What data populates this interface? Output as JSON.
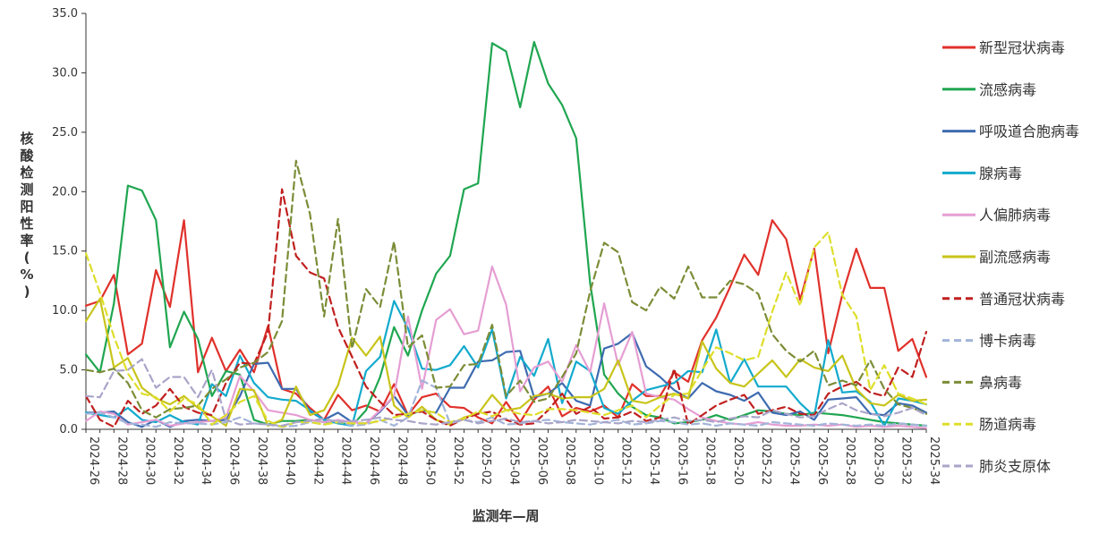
{
  "chart_data": {
    "type": "line",
    "xlabel": "监测年—周",
    "ylabel": "核酸检测阳性率(%)",
    "ylim": [
      0,
      35
    ],
    "yticks": [
      "0.0",
      "5.0",
      "10.0",
      "15.0",
      "20.0",
      "25.0",
      "30.0",
      "35.0"
    ],
    "grid": false,
    "legend_position": "right",
    "categories": [
      "2024-26",
      "2024-27",
      "2024-28",
      "2024-29",
      "2024-30",
      "2024-31",
      "2024-32",
      "2024-33",
      "2024-34",
      "2024-35",
      "2024-36",
      "2024-37",
      "2024-38",
      "2024-39",
      "2024-40",
      "2024-41",
      "2024-42",
      "2024-43",
      "2024-44",
      "2024-45",
      "2024-46",
      "2024-47",
      "2024-48",
      "2024-49",
      "2024-50",
      "2024-51",
      "2024-52",
      "2025-01",
      "2025-02",
      "2025-03",
      "2025-04",
      "2025-05",
      "2025-06",
      "2025-07",
      "2025-08",
      "2025-09",
      "2025-10",
      "2025-11",
      "2025-12",
      "2025-13",
      "2025-14",
      "2025-15",
      "2025-16",
      "2025-17",
      "2025-18",
      "2025-19",
      "2025-20",
      "2025-21",
      "2025-22",
      "2025-23",
      "2025-24",
      "2025-25",
      "2025-26",
      "2025-27",
      "2025-28",
      "2025-29",
      "2025-30",
      "2025-31",
      "2025-32",
      "2025-33",
      "2025-34"
    ],
    "tick_labels": [
      "2024-26",
      "2024-28",
      "2024-30",
      "2024-32",
      "2024-34",
      "2024-36",
      "2024-38",
      "2024-40",
      "2024-42",
      "2024-44",
      "2024-46",
      "2024-48",
      "2024-50",
      "2024-52",
      "2025-02",
      "2025-04",
      "2025-06",
      "2025-08",
      "2025-10",
      "2025-12",
      "2025-14",
      "2025-16",
      "2025-18",
      "2025-20",
      "2025-22",
      "2025-24",
      "2025-26",
      "2025-28",
      "2025-30",
      "2025-32",
      "2025-34"
    ],
    "series": [
      {
        "name": "新型冠状病毒",
        "color": "#e0312b",
        "dash": false,
        "values": [
          10.4,
          10.8,
          13.0,
          6.3,
          7.2,
          13.4,
          10.3,
          17.6,
          4.8,
          7.7,
          4.9,
          6.7,
          4.8,
          8.7,
          3.4,
          3.0,
          1.8,
          0.8,
          2.9,
          1.6,
          2.0,
          1.5,
          3.8,
          1.2,
          2.7,
          3.0,
          1.9,
          1.8,
          1.0,
          0.5,
          2.3,
          0.6,
          2.5,
          3.6,
          1.1,
          1.8,
          1.5,
          2.0,
          1.0,
          3.8,
          2.8,
          2.8,
          4.8,
          4.0,
          7.5,
          9.4,
          12.0,
          14.7,
          13.0,
          17.6,
          16.0,
          10.9,
          15.2,
          6.4,
          11.3,
          15.2,
          11.9,
          11.9,
          6.6,
          7.6,
          4.4
        ]
      },
      {
        "name": "流感病毒",
        "color": "#1fa650",
        "dash": false,
        "values": [
          6.3,
          4.8,
          10.6,
          20.5,
          20.1,
          17.6,
          6.9,
          9.9,
          7.6,
          2.8,
          4.9,
          4.6,
          0.8,
          0.4,
          0.7,
          0.7,
          0.8,
          0.6,
          0.6,
          0.3,
          1.6,
          4.4,
          8.6,
          6.2,
          10.0,
          13.1,
          14.6,
          20.2,
          20.7,
          32.5,
          31.8,
          27.1,
          32.6,
          29.1,
          27.3,
          24.5,
          12.3,
          4.6,
          3.0,
          1.9,
          1.2,
          1.0,
          0.5,
          0.6,
          0.8,
          1.2,
          0.8,
          1.2,
          1.6,
          1.5,
          1.3,
          1.2,
          1.4,
          1.3,
          1.2,
          1.0,
          0.8,
          0.6,
          0.5,
          0.4,
          0.3
        ]
      },
      {
        "name": "呼吸道合胞病毒",
        "color": "#3e6bb0",
        "dash": false,
        "values": [
          1.4,
          1.4,
          1.5,
          0.6,
          0.2,
          0.8,
          0.2,
          0.7,
          0.8,
          0.7,
          0.8,
          2.8,
          5.5,
          5.6,
          3.4,
          3.4,
          1.5,
          0.8,
          1.4,
          0.6,
          0.5,
          1.5,
          2.8,
          1.2,
          1.6,
          1.4,
          3.5,
          3.5,
          5.7,
          5.8,
          6.5,
          6.6,
          2.7,
          3.0,
          3.9,
          2.4,
          2.0,
          6.8,
          7.2,
          8.1,
          5.3,
          4.4,
          3.3,
          2.6,
          3.9,
          3.2,
          2.9,
          2.4,
          3.1,
          1.4,
          1.2,
          1.5,
          0.8,
          2.5,
          2.6,
          2.7,
          1.3,
          1.2,
          2.2,
          2.0,
          1.4
        ]
      },
      {
        "name": "腺病毒",
        "color": "#13aacd",
        "dash": false,
        "values": [
          1.4,
          1.2,
          1.0,
          1.8,
          0.8,
          0.6,
          1.2,
          0.6,
          0.4,
          3.8,
          2.8,
          6.2,
          3.9,
          2.7,
          2.5,
          2.4,
          1.6,
          0.8,
          0.5,
          0.3,
          4.9,
          6.1,
          10.8,
          8.5,
          5.1,
          5.0,
          5.4,
          7.0,
          5.2,
          8.4,
          2.6,
          6.1,
          4.5,
          7.6,
          2.2,
          5.7,
          4.9,
          1.8,
          1.3,
          2.4,
          3.3,
          3.6,
          3.9,
          4.9,
          4.8,
          8.4,
          3.9,
          5.9,
          3.6,
          3.6,
          3.6,
          2.2,
          1.1,
          7.5,
          3.1,
          3.2,
          2.3,
          0.3,
          2.6,
          2.4,
          2.1
        ]
      },
      {
        "name": "人偏肺病毒",
        "color": "#e59ed3",
        "dash": false,
        "values": [
          0.7,
          1.5,
          1.3,
          0.4,
          0.6,
          0.8,
          0.3,
          0.5,
          0.6,
          0.7,
          1.0,
          4.5,
          3.2,
          1.6,
          1.4,
          1.2,
          0.8,
          0.6,
          0.8,
          0.6,
          0.5,
          1.6,
          2.8,
          9.5,
          3.4,
          9.2,
          10.1,
          8.0,
          8.3,
          13.7,
          10.5,
          3.2,
          5.2,
          5.7,
          4.0,
          7.1,
          4.8,
          10.6,
          5.4,
          8.2,
          3.0,
          2.7,
          2.5,
          1.7,
          1.0,
          0.7,
          0.5,
          0.4,
          0.6,
          0.4,
          0.3,
          0.3,
          0.4,
          0.3,
          0.4,
          0.2,
          0.3,
          0.2,
          0.3,
          0.2,
          0.1
        ]
      },
      {
        "name": "副流感病毒",
        "color": "#c8c41a",
        "dash": false,
        "values": [
          9.1,
          11.0,
          5.2,
          6.0,
          3.5,
          2.6,
          2.1,
          2.8,
          1.8,
          1.1,
          0.3,
          3.4,
          3.3,
          0.3,
          0.8,
          3.6,
          1.2,
          1.6,
          3.7,
          7.7,
          6.2,
          7.8,
          2.0,
          1.0,
          1.9,
          0.8,
          0.4,
          1.0,
          1.3,
          2.9,
          1.6,
          1.8,
          2.8,
          3.0,
          2.6,
          2.7,
          2.7,
          3.4,
          5.8,
          2.4,
          2.2,
          2.7,
          3.0,
          2.6,
          7.4,
          5.1,
          3.9,
          3.6,
          4.7,
          5.8,
          4.4,
          5.9,
          5.2,
          4.9,
          6.2,
          3.4,
          2.2,
          2.0,
          2.9,
          2.4,
          2.5
        ]
      },
      {
        "name": "普通冠状病毒",
        "color": "#c0201f",
        "dash": true,
        "values": [
          2.8,
          0.8,
          0.2,
          2.4,
          1.3,
          2.0,
          3.4,
          1.9,
          1.4,
          1.2,
          3.9,
          5.6,
          5.5,
          8.2,
          20.2,
          14.6,
          13.2,
          12.7,
          8.6,
          6.1,
          3.6,
          2.3,
          1.2,
          1.3,
          1.5,
          0.8,
          0.3,
          0.9,
          1.3,
          1.5,
          0.8,
          0.4,
          0.5,
          1.6,
          3.0,
          1.3,
          1.9,
          0.9,
          1.0,
          1.5,
          0.7,
          1.0,
          5.1,
          0.4,
          1.2,
          2.0,
          2.5,
          2.9,
          1.3,
          1.6,
          1.9,
          1.3,
          1.2,
          3.0,
          3.6,
          4.0,
          3.1,
          2.8,
          5.2,
          4.4,
          8.2
        ]
      },
      {
        "name": "博卡病毒",
        "color": "#a2b4d9",
        "dash": true,
        "values": [
          1.3,
          1.4,
          1.0,
          0.5,
          0.4,
          0.2,
          0.6,
          0.5,
          0.5,
          0.4,
          0.6,
          1.0,
          0.5,
          0.4,
          0.2,
          0.3,
          0.6,
          0.4,
          0.7,
          0.3,
          0.4,
          0.8,
          0.3,
          1.0,
          4.1,
          3.5,
          0.5,
          0.8,
          0.6,
          1.0,
          0.4,
          0.5,
          0.7,
          0.8,
          0.6,
          0.5,
          0.4,
          0.6,
          0.8,
          0.4,
          0.5,
          0.7,
          0.6,
          0.4,
          0.5,
          0.3,
          0.5,
          0.4,
          0.3,
          0.6,
          0.5,
          0.4,
          0.3,
          0.5,
          0.4,
          0.3,
          0.4,
          0.3,
          0.5,
          0.4,
          0.3
        ]
      },
      {
        "name": "鼻病毒",
        "color": "#7b8d37",
        "dash": true,
        "values": [
          5.0,
          4.8,
          5.1,
          3.9,
          1.6,
          1.0,
          1.7,
          1.8,
          2.0,
          3.4,
          4.2,
          5.2,
          5.6,
          6.5,
          9.1,
          22.6,
          18.1,
          9.5,
          17.7,
          6.8,
          11.8,
          10.3,
          15.8,
          6.9,
          7.9,
          3.5,
          3.6,
          5.4,
          5.5,
          8.8,
          2.8,
          4.1,
          2.3,
          2.6,
          4.4,
          6.4,
          11.6,
          15.7,
          14.9,
          10.7,
          10.0,
          12.0,
          11.0,
          13.7,
          11.1,
          11.1,
          12.5,
          12.2,
          11.4,
          8.0,
          6.6,
          5.7,
          6.6,
          3.7,
          4.1,
          3.7,
          5.8,
          3.4,
          2.1,
          1.8,
          1.3
        ]
      },
      {
        "name": "肠道病毒",
        "color": "#dede2b",
        "dash": true,
        "values": [
          14.8,
          11.5,
          7.8,
          4.7,
          3.0,
          2.7,
          1.5,
          2.6,
          2.1,
          0.4,
          1.2,
          2.3,
          2.8,
          0.7,
          0.2,
          0.6,
          0.6,
          0.4,
          0.6,
          0.5,
          0.5,
          0.7,
          1.0,
          1.3,
          1.6,
          1.4,
          0.6,
          0.9,
          1.5,
          1.1,
          1.6,
          1.3,
          1.2,
          1.7,
          1.7,
          1.6,
          1.4,
          1.2,
          1.6,
          2.0,
          1.0,
          2.0,
          2.9,
          3.0,
          5.0,
          6.9,
          6.4,
          5.8,
          6.1,
          9.9,
          13.2,
          10.4,
          15.3,
          16.6,
          11.3,
          9.5,
          3.3,
          5.4,
          3.0,
          2.6,
          2.1
        ]
      },
      {
        "name": "肺炎支原体",
        "color": "#a9a5c9",
        "dash": true,
        "values": [
          2.8,
          2.7,
          4.9,
          5.0,
          5.9,
          3.5,
          4.4,
          4.4,
          2.7,
          5.0,
          0.8,
          0.4,
          0.5,
          0.4,
          0.3,
          0.6,
          0.7,
          0.9,
          0.6,
          0.7,
          0.8,
          1.0,
          0.8,
          0.7,
          0.5,
          0.4,
          0.6,
          0.8,
          0.5,
          0.7,
          0.9,
          0.6,
          0.7,
          0.5,
          0.6,
          0.8,
          0.7,
          0.6,
          0.5,
          0.7,
          0.6,
          0.8,
          1.0,
          0.7,
          0.8,
          0.6,
          0.9,
          1.1,
          1.0,
          1.6,
          1.3,
          1.0,
          1.1,
          1.7,
          2.2,
          1.6,
          1.3,
          1.1,
          1.4,
          1.8,
          1.2
        ]
      }
    ]
  }
}
